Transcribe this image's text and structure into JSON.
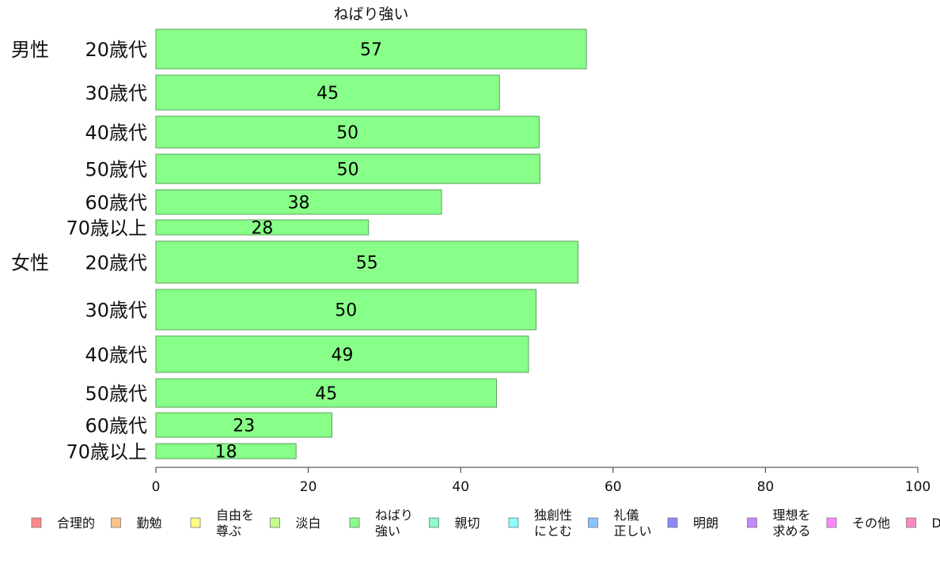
{
  "chart_data": {
    "type": "bar",
    "orientation": "horizontal",
    "title": "ねばり強い",
    "groups": [
      "男性",
      "女性"
    ],
    "categories": [
      "20歳代",
      "30歳代",
      "40歳代",
      "50歳代",
      "60歳代",
      "70歳以上",
      "20歳代",
      "30歳代",
      "40歳代",
      "50歳代",
      "60歳代",
      "70歳以上"
    ],
    "series": [
      {
        "name": "ねばり強い",
        "color": "#88ff88",
        "values": [
          56.5,
          45.1,
          50.3,
          50.4,
          37.5,
          27.9,
          55.4,
          49.9,
          48.9,
          44.7,
          23.1,
          18.4
        ],
        "labels": [
          "57",
          "45",
          "50",
          "50",
          "38",
          "28",
          "55",
          "50",
          "49",
          "45",
          "23",
          "18"
        ]
      }
    ],
    "xlim": [
      0,
      100
    ],
    "xticks": [
      "0",
      "20",
      "40",
      "60",
      "80",
      "100"
    ],
    "grid": false,
    "legend_position": "bottom",
    "legend": [
      {
        "label": [
          "合理的"
        ],
        "color": "#ff8888"
      },
      {
        "label": [
          "勤勉"
        ],
        "color": "#ffc488"
      },
      {
        "label": [
          "自由を",
          "尊ぶ"
        ],
        "color": "#ffff88"
      },
      {
        "label": [
          "淡白"
        ],
        "color": "#c4ff88"
      },
      {
        "label": [
          "ねばり",
          "強い"
        ],
        "color": "#88ff88"
      },
      {
        "label": [
          "親切"
        ],
        "color": "#88ffc4"
      },
      {
        "label": [
          "独創性",
          "にとむ"
        ],
        "color": "#88ffff"
      },
      {
        "label": [
          "礼儀",
          "正しい"
        ],
        "color": "#88c4ff"
      },
      {
        "label": [
          "明朗"
        ],
        "color": "#8888ff"
      },
      {
        "label": [
          "理想を",
          "求める"
        ],
        "color": "#c488ff"
      },
      {
        "label": [
          "その他"
        ],
        "color": "#ff88ff"
      },
      {
        "label": [
          "D"
        ],
        "color": "#ff88c4"
      }
    ]
  }
}
